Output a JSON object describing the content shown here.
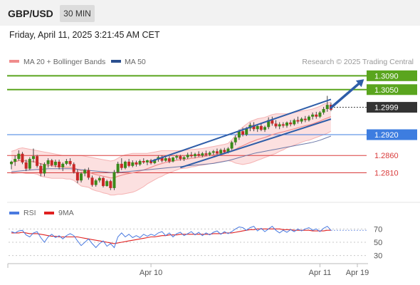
{
  "header": {
    "symbol": "GBP/USD",
    "timeframe": "30 MIN"
  },
  "timestamp": "Friday, April 11, 2025 3:21:45 AM CET",
  "legend": {
    "items": [
      {
        "label": "MA 20 + Bollinger Bands",
        "color": "#f08c8c"
      },
      {
        "label": "MA 50",
        "color": "#2b4f8f"
      }
    ],
    "credit": "Research © 2025 Trading Central"
  },
  "chart_data": {
    "type": "candlestick",
    "ylim": [
      1.2733,
      1.3103
    ],
    "levels": [
      {
        "value": 1.309,
        "label": "1.3090",
        "color": "#5aa51e",
        "badge": true
      },
      {
        "value": 1.305,
        "label": "1.3050",
        "color": "#5aa51e",
        "badge": true
      },
      {
        "value": 1.2999,
        "label": "1.2999",
        "color": "#333333",
        "badge": true
      },
      {
        "value": 1.292,
        "label": "1.2920",
        "color": "#3d7de0",
        "badge": true
      },
      {
        "value": 1.286,
        "label": "1.2860",
        "color": "#d93b3b",
        "badge": false
      },
      {
        "value": 1.281,
        "label": "1.2810",
        "color": "#d93b3b",
        "badge": false
      }
    ],
    "x_ticks": [
      {
        "index": 38,
        "label": "Apr 10"
      },
      {
        "index": 84,
        "label": "Apr 11"
      },
      {
        "index": 98,
        "label": "Apr 19"
      }
    ],
    "candles": [
      [
        1.2835,
        1.2845,
        1.282,
        1.2842
      ],
      [
        1.2842,
        1.286,
        1.283,
        1.285
      ],
      [
        1.285,
        1.2875,
        1.2845,
        1.2865
      ],
      [
        1.2865,
        1.287,
        1.2835,
        1.284
      ],
      [
        1.284,
        1.2848,
        1.2815,
        1.2822
      ],
      [
        1.2822,
        1.2855,
        1.2818,
        1.285
      ],
      [
        1.285,
        1.288,
        1.284,
        1.2858
      ],
      [
        1.2858,
        1.2862,
        1.2825,
        1.283
      ],
      [
        1.283,
        1.2838,
        1.28,
        1.2808
      ],
      [
        1.2808,
        1.284,
        1.28,
        1.2835
      ],
      [
        1.2835,
        1.2852,
        1.2825,
        1.2846
      ],
      [
        1.2846,
        1.285,
        1.2828,
        1.2832
      ],
      [
        1.2832,
        1.2848,
        1.2826,
        1.2842
      ],
      [
        1.2842,
        1.2848,
        1.282,
        1.2826
      ],
      [
        1.2826,
        1.284,
        1.2815,
        1.2836
      ],
      [
        1.2836,
        1.285,
        1.2832,
        1.2844
      ],
      [
        1.2844,
        1.2852,
        1.283,
        1.2835
      ],
      [
        1.2835,
        1.284,
        1.2808,
        1.2812
      ],
      [
        1.2812,
        1.282,
        1.278,
        1.2788
      ],
      [
        1.2788,
        1.2812,
        1.2782,
        1.2808
      ],
      [
        1.2808,
        1.2822,
        1.28,
        1.2818
      ],
      [
        1.2818,
        1.2825,
        1.279,
        1.2796
      ],
      [
        1.2796,
        1.2802,
        1.277,
        1.2775
      ],
      [
        1.2775,
        1.2792,
        1.277,
        1.2788
      ],
      [
        1.2788,
        1.28,
        1.2782,
        1.2795
      ],
      [
        1.2795,
        1.2798,
        1.2768,
        1.2772
      ],
      [
        1.2772,
        1.279,
        1.277,
        1.2786
      ],
      [
        1.2786,
        1.279,
        1.276,
        1.2766
      ],
      [
        1.2766,
        1.2818,
        1.276,
        1.2812
      ],
      [
        1.2812,
        1.2842,
        1.2808,
        1.2836
      ],
      [
        1.2836,
        1.2852,
        1.2818,
        1.2824
      ],
      [
        1.2824,
        1.2845,
        1.282,
        1.2842
      ],
      [
        1.2842,
        1.285,
        1.2826,
        1.283
      ],
      [
        1.283,
        1.2846,
        1.2826,
        1.284
      ],
      [
        1.284,
        1.2845,
        1.2828,
        1.2834
      ],
      [
        1.2834,
        1.2848,
        1.283,
        1.2844
      ],
      [
        1.2844,
        1.2852,
        1.2836,
        1.284
      ],
      [
        1.284,
        1.2848,
        1.2832,
        1.2846
      ],
      [
        1.2846,
        1.285,
        1.2834,
        1.2838
      ],
      [
        1.2838,
        1.285,
        1.2835,
        1.2848
      ],
      [
        1.2848,
        1.286,
        1.2842,
        1.2855
      ],
      [
        1.2855,
        1.286,
        1.284,
        1.2845
      ],
      [
        1.2845,
        1.2856,
        1.2842,
        1.2852
      ],
      [
        1.2852,
        1.2858,
        1.2838,
        1.2843
      ],
      [
        1.2843,
        1.2856,
        1.284,
        1.2854
      ],
      [
        1.2854,
        1.2862,
        1.2848,
        1.2858
      ],
      [
        1.2858,
        1.2862,
        1.2845,
        1.285
      ],
      [
        1.285,
        1.2858,
        1.2844,
        1.2855
      ],
      [
        1.2855,
        1.2868,
        1.285,
        1.2862
      ],
      [
        1.2862,
        1.287,
        1.2854,
        1.2858
      ],
      [
        1.2858,
        1.2868,
        1.2852,
        1.2864
      ],
      [
        1.2864,
        1.2872,
        1.2856,
        1.286
      ],
      [
        1.286,
        1.287,
        1.2855,
        1.2866
      ],
      [
        1.2866,
        1.2874,
        1.2858,
        1.2862
      ],
      [
        1.2862,
        1.2872,
        1.2858,
        1.2868
      ],
      [
        1.2868,
        1.2876,
        1.2862,
        1.2872
      ],
      [
        1.2872,
        1.288,
        1.286,
        1.2866
      ],
      [
        1.2866,
        1.288,
        1.2862,
        1.2876
      ],
      [
        1.2876,
        1.2882,
        1.2866,
        1.287
      ],
      [
        1.287,
        1.2884,
        1.2866,
        1.288
      ],
      [
        1.288,
        1.2902,
        1.2876,
        1.2898
      ],
      [
        1.2898,
        1.2918,
        1.289,
        1.2912
      ],
      [
        1.2912,
        1.2935,
        1.2905,
        1.293
      ],
      [
        1.293,
        1.294,
        1.2915,
        1.292
      ],
      [
        1.292,
        1.2942,
        1.2916,
        1.2938
      ],
      [
        1.2938,
        1.2955,
        1.293,
        1.2948
      ],
      [
        1.2948,
        1.2956,
        1.293,
        1.2936
      ],
      [
        1.2936,
        1.295,
        1.2928,
        1.2945
      ],
      [
        1.2945,
        1.2952,
        1.293,
        1.2934
      ],
      [
        1.2934,
        1.2946,
        1.2928,
        1.2942
      ],
      [
        1.2942,
        1.297,
        1.2936,
        1.2962
      ],
      [
        1.2962,
        1.2972,
        1.2946,
        1.2952
      ],
      [
        1.2952,
        1.2962,
        1.2938,
        1.2944
      ],
      [
        1.2944,
        1.2956,
        1.2936,
        1.295
      ],
      [
        1.295,
        1.2956,
        1.294,
        1.2946
      ],
      [
        1.2946,
        1.2958,
        1.294,
        1.2955
      ],
      [
        1.2955,
        1.2962,
        1.2944,
        1.295
      ],
      [
        1.295,
        1.2966,
        1.2946,
        1.2962
      ],
      [
        1.2962,
        1.2972,
        1.2952,
        1.2958
      ],
      [
        1.2958,
        1.297,
        1.2952,
        1.2966
      ],
      [
        1.2966,
        1.2974,
        1.2956,
        1.2962
      ],
      [
        1.2962,
        1.2976,
        1.2958,
        1.2972
      ],
      [
        1.2972,
        1.2984,
        1.2964,
        1.2978
      ],
      [
        1.2978,
        1.2986,
        1.2966,
        1.2972
      ],
      [
        1.2972,
        1.2988,
        1.2968,
        1.2984
      ],
      [
        1.2984,
        1.3,
        1.2978,
        1.2994
      ],
      [
        1.2994,
        1.3032,
        1.2986,
        1.3006
      ],
      [
        1.3006,
        1.3012,
        1.2988,
        1.2992
      ]
    ],
    "ma20": [
      1.284,
      1.2842,
      1.2845,
      1.2846,
      1.2844,
      1.2843,
      1.2842,
      1.284,
      1.2836,
      1.2834,
      1.2832,
      1.283,
      1.2829,
      1.2828,
      1.2827,
      1.2826,
      1.2826,
      1.2824,
      1.282,
      1.2816,
      1.2814,
      1.2812,
      1.2808,
      1.2805,
      1.2803,
      1.28,
      1.2798,
      1.2795,
      1.2796,
      1.28,
      1.2803,
      1.2806,
      1.2808,
      1.281,
      1.2812,
      1.2815,
      1.2818,
      1.2822,
      1.2826,
      1.283,
      1.2834,
      1.2837,
      1.284,
      1.2842,
      1.2844,
      1.2846,
      1.2848,
      1.2849,
      1.285,
      1.2852,
      1.2853,
      1.2855,
      1.2856,
      1.2858,
      1.286,
      1.2862,
      1.2864,
      1.2866,
      1.2868,
      1.287,
      1.2874,
      1.2878,
      1.2884,
      1.2888,
      1.2893,
      1.2898,
      1.2902,
      1.2906,
      1.2909,
      1.2912,
      1.2916,
      1.292,
      1.2923,
      1.2926,
      1.2928,
      1.2931,
      1.2934,
      1.2937,
      1.294,
      1.2943,
      1.2946,
      1.2948,
      1.2951,
      1.2955,
      1.2959,
      1.2964,
      1.2968,
      1.2972
    ],
    "bb_upper": [
      1.2872,
      1.2875,
      1.288,
      1.2882,
      1.288,
      1.2878,
      1.2876,
      1.2874,
      1.2872,
      1.287,
      1.2868,
      1.2866,
      1.2864,
      1.2862,
      1.286,
      1.286,
      1.286,
      1.286,
      1.286,
      1.286,
      1.2858,
      1.2856,
      1.2854,
      1.2852,
      1.285,
      1.2848,
      1.2846,
      1.2844,
      1.2846,
      1.2852,
      1.2858,
      1.2862,
      1.2864,
      1.2866,
      1.2866,
      1.2866,
      1.2866,
      1.2866,
      1.2868,
      1.287,
      1.2872,
      1.2874,
      1.2874,
      1.2874,
      1.2874,
      1.2874,
      1.2874,
      1.2875,
      1.2876,
      1.2877,
      1.2878,
      1.2879,
      1.288,
      1.2882,
      1.2884,
      1.2886,
      1.2888,
      1.289,
      1.2892,
      1.2895,
      1.2905,
      1.2918,
      1.2932,
      1.2942,
      1.295,
      1.2958,
      1.2962,
      1.2966,
      1.2968,
      1.297,
      1.2974,
      1.2978,
      1.298,
      1.298,
      1.298,
      1.298,
      1.2982,
      1.2984,
      1.2986,
      1.2988,
      1.299,
      1.2992,
      1.2994,
      1.2998,
      1.3002,
      1.3008,
      1.3012,
      1.3014
    ],
    "bb_lower": [
      1.2808,
      1.2809,
      1.281,
      1.281,
      1.2808,
      1.2808,
      1.2808,
      1.2806,
      1.28,
      1.2798,
      1.2796,
      1.2794,
      1.2794,
      1.2794,
      1.2794,
      1.2792,
      1.2792,
      1.2788,
      1.278,
      1.2772,
      1.277,
      1.2768,
      1.2762,
      1.2758,
      1.2756,
      1.2752,
      1.275,
      1.2746,
      1.2746,
      1.2748,
      1.2748,
      1.275,
      1.2752,
      1.2754,
      1.2758,
      1.2764,
      1.277,
      1.2778,
      1.2784,
      1.279,
      1.2796,
      1.28,
      1.2806,
      1.281,
      1.2814,
      1.2818,
      1.2822,
      1.2823,
      1.2824,
      1.2827,
      1.2828,
      1.2831,
      1.2832,
      1.2834,
      1.2836,
      1.2838,
      1.284,
      1.2842,
      1.2844,
      1.2845,
      1.2843,
      1.2838,
      1.2836,
      1.2834,
      1.2836,
      1.2838,
      1.2842,
      1.2846,
      1.285,
      1.2854,
      1.2858,
      1.2862,
      1.2866,
      1.2872,
      1.2876,
      1.2882,
      1.2886,
      1.289,
      1.2894,
      1.2898,
      1.2902,
      1.2904,
      1.2908,
      1.2912,
      1.2916,
      1.292,
      1.2924,
      1.293
    ],
    "ma50": [
      1.2813,
      1.2814,
      1.2815,
      1.2816,
      1.2817,
      1.2818,
      1.2819,
      1.282,
      1.282,
      1.2821,
      1.2822,
      1.2822,
      1.2822,
      1.2822,
      1.2822,
      1.2822,
      1.2822,
      1.2821,
      1.282,
      1.2819,
      1.2818,
      1.2817,
      1.2816,
      1.2815,
      1.2814,
      1.2813,
      1.2812,
      1.2811,
      1.2811,
      1.2812,
      1.2812,
      1.2813,
      1.2814,
      1.2815,
      1.2816,
      1.2817,
      1.2818,
      1.2819,
      1.282,
      1.2821,
      1.2822,
      1.2823,
      1.2824,
      1.2825,
      1.2826,
      1.2827,
      1.2828,
      1.2829,
      1.283,
      1.2831,
      1.2832,
      1.2833,
      1.2834,
      1.2835,
      1.2836,
      1.2837,
      1.2839,
      1.2841,
      1.2843,
      1.2845,
      1.2848,
      1.2851,
      1.2854,
      1.2857,
      1.286,
      1.2863,
      1.2866,
      1.2868,
      1.287,
      1.2872,
      1.2874,
      1.2876,
      1.2878,
      1.288,
      1.2882,
      1.2884,
      1.2886,
      1.2888,
      1.289,
      1.2892,
      1.2894,
      1.2896,
      1.2898,
      1.2901,
      1.2904,
      1.2908,
      1.2912,
      1.2916
    ],
    "channel": {
      "upper": [
        [
          38,
          1.2843
        ],
        [
          87,
          1.3022
        ]
      ],
      "lower": [
        [
          46,
          1.2825
        ],
        [
          87,
          1.2965
        ]
      ]
    },
    "forecast_arrow": {
      "from": [
        87,
        1.2998
      ],
      "to": [
        96,
        1.308
      ]
    },
    "rsi": {
      "legend": [
        {
          "label": "RSI",
          "color": "#4a7ae0"
        },
        {
          "label": "9MA",
          "color": "#e02020"
        }
      ],
      "ylim": [
        20,
        80
      ],
      "levels": [
        {
          "value": 70,
          "label": "70"
        },
        {
          "value": 50,
          "label": "50"
        },
        {
          "value": 30,
          "label": "30"
        }
      ],
      "rsi": [
        66,
        64,
        67,
        68,
        61,
        58,
        64,
        66,
        57,
        50,
        58,
        62,
        57,
        60,
        55,
        60,
        63,
        60,
        52,
        45,
        50,
        55,
        48,
        42,
        48,
        52,
        44,
        48,
        42,
        58,
        64,
        58,
        62,
        57,
        60,
        57,
        62,
        59,
        62,
        60,
        64,
        66,
        60,
        64,
        58,
        63,
        65,
        60,
        63,
        66,
        61,
        65,
        60,
        64,
        61,
        65,
        67,
        62,
        66,
        63,
        66,
        70,
        73,
        72,
        68,
        72,
        74,
        67,
        71,
        66,
        70,
        74,
        68,
        64,
        68,
        65,
        69,
        66,
        70,
        67,
        70,
        72,
        68,
        70,
        66,
        71,
        74,
        68
      ],
      "ma9": [
        64,
        64,
        64,
        65,
        64,
        63,
        63,
        63,
        62,
        61,
        60,
        59,
        59,
        58,
        58,
        58,
        58,
        58,
        58,
        57,
        56,
        55,
        54,
        53,
        52,
        51,
        50,
        49,
        48,
        49,
        50,
        51,
        52,
        53,
        54,
        55,
        56,
        57,
        58,
        58,
        59,
        60,
        60,
        61,
        61,
        61,
        62,
        62,
        62,
        62,
        62,
        62,
        62,
        62,
        62,
        63,
        63,
        63,
        64,
        64,
        64,
        65,
        66,
        67,
        68,
        69,
        69,
        70,
        70,
        70,
        70,
        70,
        70,
        70,
        69,
        69,
        69,
        68,
        68,
        68,
        68,
        68,
        67,
        67,
        67,
        67,
        68,
        68
      ]
    }
  }
}
